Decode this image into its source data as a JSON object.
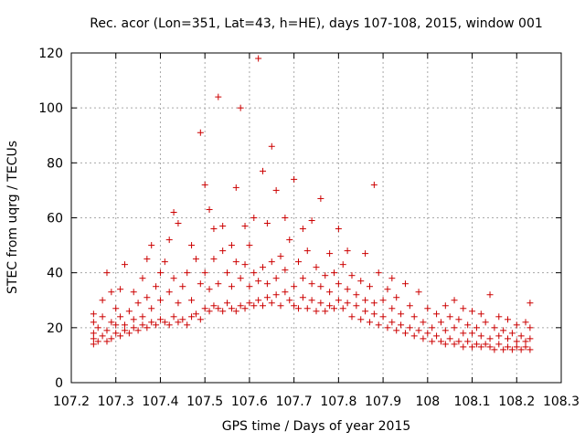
{
  "chart_data": {
    "type": "scatter",
    "title": "Rec. acor (Lon=351, Lat=43, h=HE), days 107-108, 2015, window 001",
    "xlabel": "GPS time / Days of year 2015",
    "ylabel": "STEC from uqrg / TECUs",
    "xlim": [
      107.2,
      108.3
    ],
    "ylim": [
      0,
      120
    ],
    "xticks": [
      107.2,
      107.3,
      107.4,
      107.5,
      107.6,
      107.7,
      107.8,
      107.9,
      108.0,
      108.1,
      108.2,
      108.3
    ],
    "yticks": [
      0,
      20,
      40,
      60,
      80,
      100,
      120
    ],
    "xtick_labels": [
      "107.2",
      "107.3",
      "107.4",
      "107.5",
      "107.6",
      "107.7",
      "107.8",
      "107.9",
      "108",
      "108.1",
      "108.2",
      "108.3"
    ],
    "ytick_labels": [
      "0",
      "20",
      "40",
      "60",
      "80",
      "100",
      "120"
    ],
    "grid": true,
    "marker": "+",
    "marker_color": "#cc0000",
    "series": [
      {
        "points": [
          [
            107.25,
            14
          ],
          [
            107.25,
            16
          ],
          [
            107.25,
            18
          ],
          [
            107.25,
            22
          ],
          [
            107.25,
            25
          ],
          [
            107.26,
            15
          ],
          [
            107.26,
            20
          ],
          [
            107.27,
            17
          ],
          [
            107.27,
            24
          ],
          [
            107.27,
            30
          ],
          [
            107.28,
            15
          ],
          [
            107.28,
            19
          ],
          [
            107.28,
            40
          ],
          [
            107.29,
            16
          ],
          [
            107.29,
            22
          ],
          [
            107.29,
            33
          ],
          [
            107.3,
            18
          ],
          [
            107.3,
            21
          ],
          [
            107.3,
            27
          ],
          [
            107.31,
            17
          ],
          [
            107.31,
            24
          ],
          [
            107.31,
            34
          ],
          [
            107.32,
            19
          ],
          [
            107.32,
            21
          ],
          [
            107.32,
            43
          ],
          [
            107.33,
            18
          ],
          [
            107.33,
            26
          ],
          [
            107.34,
            20
          ],
          [
            107.34,
            23
          ],
          [
            107.34,
            33
          ],
          [
            107.35,
            19
          ],
          [
            107.35,
            29
          ],
          [
            107.36,
            21
          ],
          [
            107.36,
            24
          ],
          [
            107.36,
            38
          ],
          [
            107.37,
            20
          ],
          [
            107.37,
            31
          ],
          [
            107.37,
            45
          ],
          [
            107.38,
            22
          ],
          [
            107.38,
            27
          ],
          [
            107.38,
            50
          ],
          [
            107.39,
            21
          ],
          [
            107.39,
            35
          ],
          [
            107.4,
            23
          ],
          [
            107.4,
            30
          ],
          [
            107.4,
            40
          ],
          [
            107.41,
            22
          ],
          [
            107.41,
            44
          ],
          [
            107.42,
            21
          ],
          [
            107.42,
            33
          ],
          [
            107.42,
            52
          ],
          [
            107.43,
            24
          ],
          [
            107.43,
            38
          ],
          [
            107.43,
            62
          ],
          [
            107.44,
            22
          ],
          [
            107.44,
            29
          ],
          [
            107.44,
            58
          ],
          [
            107.45,
            23
          ],
          [
            107.45,
            35
          ],
          [
            107.46,
            21
          ],
          [
            107.46,
            40
          ],
          [
            107.47,
            24
          ],
          [
            107.47,
            30
          ],
          [
            107.47,
            50
          ],
          [
            107.48,
            25
          ],
          [
            107.48,
            45
          ],
          [
            107.49,
            23
          ],
          [
            107.49,
            36
          ],
          [
            107.49,
            91
          ],
          [
            107.5,
            27
          ],
          [
            107.5,
            40
          ],
          [
            107.5,
            72
          ],
          [
            107.51,
            26
          ],
          [
            107.51,
            34
          ],
          [
            107.51,
            63
          ],
          [
            107.52,
            28
          ],
          [
            107.52,
            45
          ],
          [
            107.52,
            56
          ],
          [
            107.53,
            27
          ],
          [
            107.53,
            36
          ],
          [
            107.53,
            104
          ],
          [
            107.54,
            26
          ],
          [
            107.54,
            48
          ],
          [
            107.54,
            57
          ],
          [
            107.55,
            29
          ],
          [
            107.55,
            40
          ],
          [
            107.56,
            27
          ],
          [
            107.56,
            35
          ],
          [
            107.56,
            50
          ],
          [
            107.57,
            26
          ],
          [
            107.57,
            44
          ],
          [
            107.57,
            71
          ],
          [
            107.58,
            28
          ],
          [
            107.58,
            38
          ],
          [
            107.58,
            100
          ],
          [
            107.59,
            27
          ],
          [
            107.59,
            43
          ],
          [
            107.59,
            57
          ],
          [
            107.6,
            29
          ],
          [
            107.6,
            35
          ],
          [
            107.6,
            50
          ],
          [
            107.61,
            28
          ],
          [
            107.61,
            40
          ],
          [
            107.61,
            60
          ],
          [
            107.62,
            30
          ],
          [
            107.62,
            37
          ],
          [
            107.62,
            118
          ],
          [
            107.63,
            28
          ],
          [
            107.63,
            42
          ],
          [
            107.63,
            77
          ],
          [
            107.64,
            31
          ],
          [
            107.64,
            36
          ],
          [
            107.64,
            58
          ],
          [
            107.65,
            29
          ],
          [
            107.65,
            44
          ],
          [
            107.65,
            86
          ],
          [
            107.66,
            32
          ],
          [
            107.66,
            38
          ],
          [
            107.66,
            70
          ],
          [
            107.67,
            28
          ],
          [
            107.67,
            46
          ],
          [
            107.68,
            33
          ],
          [
            107.68,
            41
          ],
          [
            107.68,
            60
          ],
          [
            107.69,
            30
          ],
          [
            107.69,
            52
          ],
          [
            107.7,
            28
          ],
          [
            107.7,
            35
          ],
          [
            107.7,
            74
          ],
          [
            107.71,
            27
          ],
          [
            107.71,
            44
          ],
          [
            107.72,
            31
          ],
          [
            107.72,
            38
          ],
          [
            107.72,
            56
          ],
          [
            107.73,
            27
          ],
          [
            107.73,
            48
          ],
          [
            107.74,
            30
          ],
          [
            107.74,
            36
          ],
          [
            107.74,
            59
          ],
          [
            107.75,
            26
          ],
          [
            107.75,
            42
          ],
          [
            107.76,
            29
          ],
          [
            107.76,
            35
          ],
          [
            107.76,
            67
          ],
          [
            107.77,
            26
          ],
          [
            107.77,
            39
          ],
          [
            107.78,
            28
          ],
          [
            107.78,
            33
          ],
          [
            107.78,
            47
          ],
          [
            107.79,
            27
          ],
          [
            107.79,
            40
          ],
          [
            107.8,
            30
          ],
          [
            107.8,
            36
          ],
          [
            107.8,
            56
          ],
          [
            107.81,
            27
          ],
          [
            107.81,
            43
          ],
          [
            107.82,
            29
          ],
          [
            107.82,
            34
          ],
          [
            107.82,
            48
          ],
          [
            107.83,
            24
          ],
          [
            107.83,
            39
          ],
          [
            107.84,
            28
          ],
          [
            107.84,
            32
          ],
          [
            107.85,
            23
          ],
          [
            107.85,
            37
          ],
          [
            107.86,
            26
          ],
          [
            107.86,
            30
          ],
          [
            107.86,
            47
          ],
          [
            107.87,
            22
          ],
          [
            107.87,
            35
          ],
          [
            107.88,
            25
          ],
          [
            107.88,
            29
          ],
          [
            107.88,
            72
          ],
          [
            107.89,
            21
          ],
          [
            107.89,
            40
          ],
          [
            107.9,
            24
          ],
          [
            107.9,
            30
          ],
          [
            107.91,
            20
          ],
          [
            107.91,
            34
          ],
          [
            107.92,
            22
          ],
          [
            107.92,
            27
          ],
          [
            107.92,
            38
          ],
          [
            107.93,
            19
          ],
          [
            107.93,
            31
          ],
          [
            107.94,
            21
          ],
          [
            107.94,
            25
          ],
          [
            107.95,
            18
          ],
          [
            107.95,
            36
          ],
          [
            107.96,
            20
          ],
          [
            107.96,
            28
          ],
          [
            107.97,
            17
          ],
          [
            107.97,
            24
          ],
          [
            107.98,
            19
          ],
          [
            107.98,
            33
          ],
          [
            107.99,
            16
          ],
          [
            107.99,
            22
          ],
          [
            108.0,
            18
          ],
          [
            108.0,
            27
          ],
          [
            108.01,
            15
          ],
          [
            108.01,
            20
          ],
          [
            108.02,
            17
          ],
          [
            108.02,
            25
          ],
          [
            108.03,
            15
          ],
          [
            108.03,
            22
          ],
          [
            108.04,
            14
          ],
          [
            108.04,
            19
          ],
          [
            108.04,
            28
          ],
          [
            108.05,
            16
          ],
          [
            108.05,
            24
          ],
          [
            108.06,
            14
          ],
          [
            108.06,
            20
          ],
          [
            108.06,
            30
          ],
          [
            108.07,
            15
          ],
          [
            108.07,
            23
          ],
          [
            108.08,
            13
          ],
          [
            108.08,
            18
          ],
          [
            108.08,
            27
          ],
          [
            108.09,
            15
          ],
          [
            108.09,
            21
          ],
          [
            108.1,
            13
          ],
          [
            108.1,
            18
          ],
          [
            108.1,
            26
          ],
          [
            108.11,
            14
          ],
          [
            108.11,
            20
          ],
          [
            108.12,
            13
          ],
          [
            108.12,
            17
          ],
          [
            108.12,
            25
          ],
          [
            108.13,
            14
          ],
          [
            108.13,
            22
          ],
          [
            108.14,
            13
          ],
          [
            108.14,
            16
          ],
          [
            108.14,
            32
          ],
          [
            108.15,
            12
          ],
          [
            108.15,
            20
          ],
          [
            108.16,
            14
          ],
          [
            108.16,
            17
          ],
          [
            108.16,
            24
          ],
          [
            108.17,
            12
          ],
          [
            108.17,
            19
          ],
          [
            108.18,
            13
          ],
          [
            108.18,
            16
          ],
          [
            108.18,
            23
          ],
          [
            108.19,
            12
          ],
          [
            108.19,
            18
          ],
          [
            108.2,
            13
          ],
          [
            108.2,
            15
          ],
          [
            108.2,
            21
          ],
          [
            108.21,
            12
          ],
          [
            108.21,
            17
          ],
          [
            108.22,
            13
          ],
          [
            108.22,
            15
          ],
          [
            108.22,
            22
          ],
          [
            108.23,
            12
          ],
          [
            108.23,
            16
          ],
          [
            108.23,
            20
          ],
          [
            108.23,
            29
          ]
        ]
      }
    ]
  }
}
